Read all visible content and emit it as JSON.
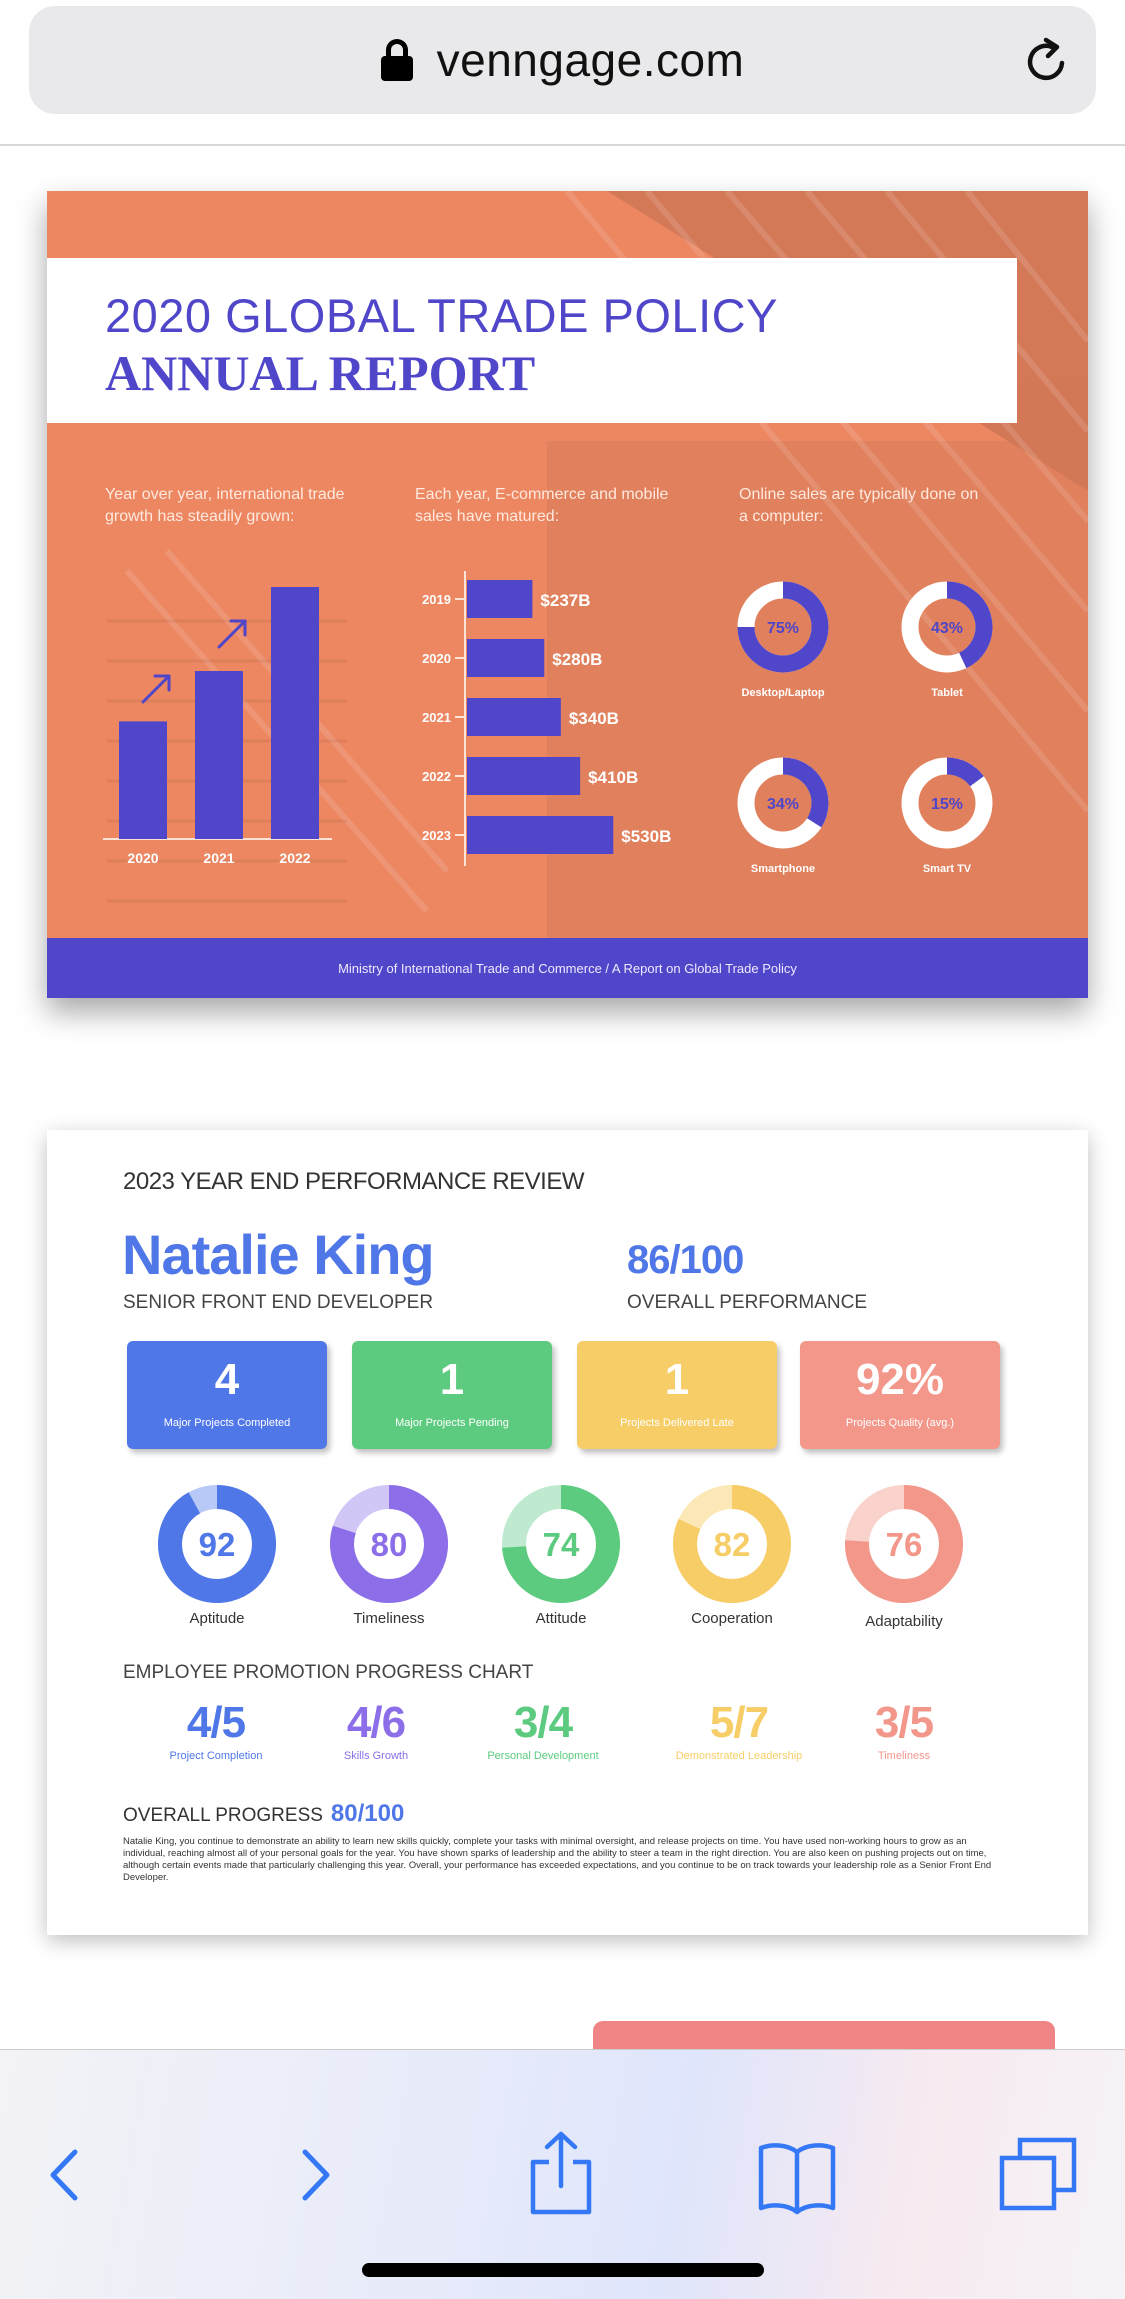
{
  "browser": {
    "url": "venngage.com",
    "toolbar": [
      "back-icon",
      "forward-icon",
      "share-icon",
      "bookmarks-icon",
      "tabs-icon"
    ]
  },
  "report": {
    "title_line1": "2020 GLOBAL TRADE POLICY",
    "title_line2": "ANNUAL REPORT",
    "caption1": "Year over year, international trade growth has steadily grown:",
    "caption2": "Each year, E-commerce and mobile sales have matured:",
    "caption3": "Online sales are typically done on a computer:",
    "footer": "Ministry of International Trade and Commerce  /  A Report on Global Trade Policy",
    "colors": {
      "bg": "#ec8762",
      "accent": "#5046c9"
    }
  },
  "chart_data": [
    {
      "type": "bar",
      "categories": [
        "2020",
        "2021",
        "2022"
      ],
      "values": [
        42,
        60,
        90
      ]
    },
    {
      "type": "bar",
      "orientation": "horizontal",
      "categories": [
        "2019",
        "2020",
        "2021",
        "2022",
        "2023"
      ],
      "values": [
        237,
        280,
        340,
        410,
        530
      ],
      "value_labels": [
        "$237B",
        "$280B",
        "$340B",
        "$410B",
        "$530B"
      ]
    },
    {
      "type": "pie",
      "categories": [
        "Desktop/Laptop",
        "Tablet",
        "Smartphone",
        "Smart TV"
      ],
      "values": [
        75,
        43,
        34,
        15
      ],
      "value_labels": [
        "75%",
        "43%",
        "34%",
        "15%"
      ]
    }
  ],
  "review": {
    "header": "2023 YEAR END PERFORMANCE REVIEW",
    "name": "Natalie King",
    "role": "SENIOR FRONT END DEVELOPER",
    "score": "86/100",
    "score_label": "OVERALL PERFORMANCE",
    "stats": [
      {
        "value": "4",
        "label": "Major Projects Completed",
        "color": "#5077e8"
      },
      {
        "value": "1",
        "label": "Major Projects Pending",
        "color": "#5ccb7f"
      },
      {
        "value": "1",
        "label": "Projects Delivered Late",
        "color": "#f7cd67"
      },
      {
        "value": "92%",
        "label": "Projects Quality (avg.)",
        "color": "#f2978a"
      }
    ],
    "rings": [
      {
        "value": "92",
        "label": "Aptitude",
        "pct": 92,
        "color": "#5077e8",
        "light": "#b8c9f7"
      },
      {
        "value": "80",
        "label": "Timeliness",
        "pct": 80,
        "color": "#8c6fe8",
        "light": "#d2c6f6"
      },
      {
        "value": "74",
        "label": "Attitude",
        "pct": 74,
        "color": "#5ccb7f",
        "light": "#bfead0"
      },
      {
        "value": "82",
        "label": "Cooperation",
        "pct": 82,
        "color": "#f7cd67",
        "light": "#fbe8b6"
      },
      {
        "value": "76",
        "label": "Adaptability",
        "pct": 76,
        "color": "#f2978a",
        "light": "#f9d2cc"
      }
    ],
    "promo_title": "EMPLOYEE PROMOTION PROGRESS CHART",
    "promo": [
      {
        "value": "4/5",
        "label": "Project Completion",
        "color": "#5077e8"
      },
      {
        "value": "4/6",
        "label": "Skills Growth",
        "color": "#8c6fe8"
      },
      {
        "value": "3/4",
        "label": "Personal Development",
        "color": "#5ccb7f"
      },
      {
        "value": "5/7",
        "label": "Demonstrated Leadership",
        "color": "#f7cd67"
      },
      {
        "value": "3/5",
        "label": "Timeliness",
        "color": "#f2978a"
      }
    ],
    "overall_label": "OVERALL PROGRESS",
    "overall_value": "80/100",
    "paragraph": "Natalie King, you continue to demonstrate an ability to learn new skills quickly, complete your tasks with minimal oversight, and release projects on time. You have used non-working hours to grow as an individual, reaching almost all of your personal goals for the year. You have shown sparks of leadership and the ability to steer a team in the right direction. You are also keen on pushing projects out on time, although certain events made that particularly challenging this year. Overall, your performance has exceeded expectations, and you continue to be on track towards your leadership role as a Senior Front End Developer."
  }
}
